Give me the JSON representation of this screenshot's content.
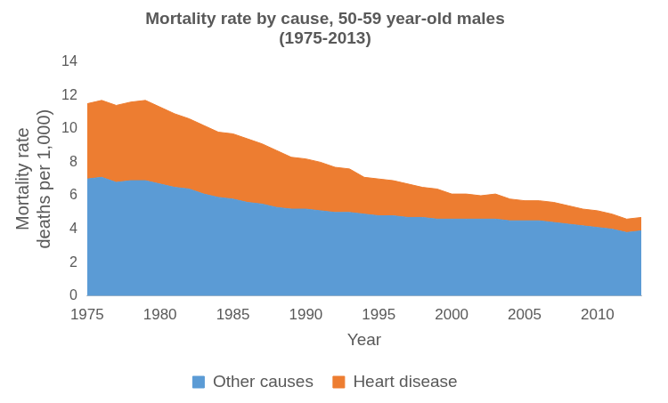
{
  "chart_data": {
    "type": "area",
    "title": [
      "Mortality rate by cause, 50-59 year-old males",
      "(1975-2013)"
    ],
    "x_label": "Year",
    "y_label": [
      "Mortality rate",
      "deaths per 1,000)"
    ],
    "x": [
      1975,
      1976,
      1977,
      1978,
      1979,
      1980,
      1981,
      1982,
      1983,
      1984,
      1985,
      1986,
      1987,
      1988,
      1989,
      1990,
      1991,
      1992,
      1993,
      1994,
      1995,
      1996,
      1997,
      1998,
      1999,
      2000,
      2001,
      2002,
      2003,
      2004,
      2005,
      2006,
      2007,
      2008,
      2009,
      2010,
      2011,
      2012,
      2013
    ],
    "series": [
      {
        "name": "Other causes",
        "color": "#5b9bd5",
        "values": [
          7.0,
          7.1,
          6.8,
          6.9,
          6.9,
          6.7,
          6.5,
          6.4,
          6.1,
          5.9,
          5.8,
          5.6,
          5.5,
          5.3,
          5.2,
          5.2,
          5.1,
          5.0,
          5.0,
          4.9,
          4.8,
          4.8,
          4.7,
          4.7,
          4.6,
          4.6,
          4.6,
          4.6,
          4.6,
          4.5,
          4.5,
          4.5,
          4.4,
          4.3,
          4.2,
          4.1,
          4.0,
          3.8,
          3.9
        ]
      },
      {
        "name": "Heart disease",
        "color": "#ed7d31",
        "values": [
          4.5,
          4.6,
          4.6,
          4.7,
          4.8,
          4.6,
          4.4,
          4.2,
          4.1,
          3.9,
          3.9,
          3.8,
          3.6,
          3.4,
          3.1,
          3.0,
          2.9,
          2.7,
          2.6,
          2.2,
          2.2,
          2.1,
          2.0,
          1.8,
          1.8,
          1.5,
          1.5,
          1.4,
          1.5,
          1.3,
          1.2,
          1.2,
          1.2,
          1.1,
          1.0,
          1.0,
          0.9,
          0.8,
          0.8
        ]
      }
    ],
    "xlim": [
      1975,
      2013
    ],
    "xticks": [
      1975,
      1980,
      1985,
      1990,
      1995,
      2000,
      2005,
      2010
    ],
    "ylim": [
      0,
      14
    ],
    "yticks": [
      0,
      2,
      4,
      6,
      8,
      10,
      12,
      14
    ],
    "stacked": true,
    "grid": false,
    "legend": "bottom"
  }
}
